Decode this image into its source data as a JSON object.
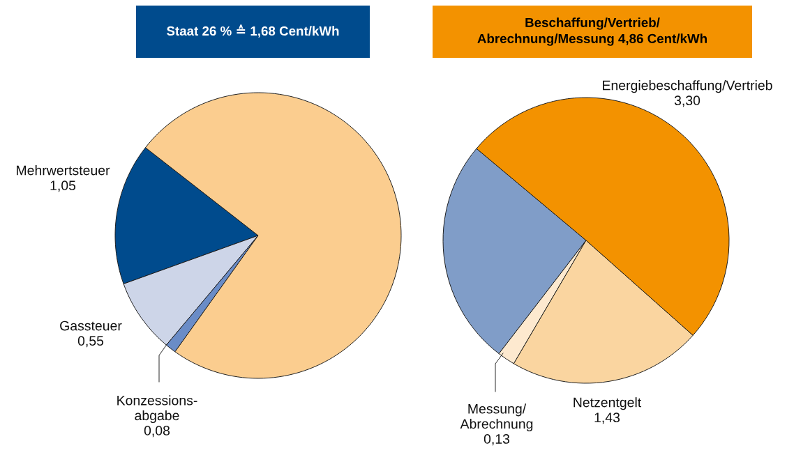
{
  "chart_data": [
    {
      "type": "pie",
      "title": "Staat 26 % ≙ 1,68 Cent/kWh",
      "categories": [
        "Mehrwertsteuer",
        "Gassteuer",
        "Konzessions-\nabgabe",
        null
      ],
      "values": [
        1.05,
        0.55,
        0.08,
        4.86
      ],
      "colors": [
        "#004b8d",
        "#cdd5e8",
        "#6a8cc7",
        "#fbcd8f"
      ],
      "value_labels": [
        "1,05",
        "0,55",
        "0,08",
        null
      ]
    },
    {
      "type": "pie",
      "title": "Beschaffung/Vertrieb/\nAbrechnung/Messung 4,86 Cent/kWh",
      "categories": [
        null,
        "Messung/\nAbrechnung",
        "Netzentgelt",
        "Energiebeschaffung/Vertrieb"
      ],
      "values": [
        1.68,
        0.13,
        1.43,
        3.3
      ],
      "colors": [
        "#809dc8",
        "#fde9cf",
        "#fad5a0",
        "#f39200"
      ],
      "value_labels": [
        null,
        "0,13",
        "1,43",
        "3,30"
      ]
    }
  ]
}
